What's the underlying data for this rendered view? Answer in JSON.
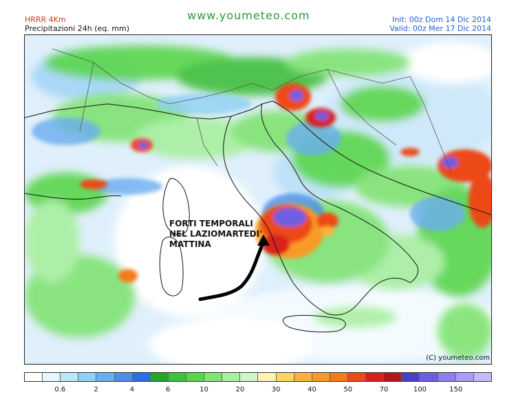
{
  "header": {
    "model": "HRRR 4Km",
    "product": "Precipitazioni 24h (eq. mm)",
    "site": "www.youmeteo.com",
    "init": "Init: 00z Dom 14 Dic 2014",
    "valid": "Valid: 00z Mer  17 Dic 2014"
  },
  "annotation": {
    "lines": [
      "FORTI TEMPORALI",
      "NEL LAZIOMARTEDI'",
      "MATTINA"
    ]
  },
  "copyright": "(C) youmeteo.com",
  "legend": {
    "colors": [
      "#ffffff",
      "#e6f7fd",
      "#b9e8f8",
      "#8fd0f3",
      "#6aaef0",
      "#4e8ee8",
      "#2c6fe3",
      "#23a62a",
      "#3fbf3a",
      "#5ad64c",
      "#80e372",
      "#a8ef9f",
      "#cdf6c9",
      "#fdf2b5",
      "#fdd65c",
      "#fbb33a",
      "#f99a27",
      "#f47a1a",
      "#ec4a18",
      "#d8201a",
      "#b5141a",
      "#4b3fc4",
      "#6c5fe0",
      "#8c7ff0",
      "#a99df7",
      "#c3b9fb"
    ],
    "ticks": [
      {
        "label": "0.6",
        "boundary": 2
      },
      {
        "label": "2",
        "boundary": 4
      },
      {
        "label": "4",
        "boundary": 6
      },
      {
        "label": "6",
        "boundary": 8
      },
      {
        "label": "10",
        "boundary": 10
      },
      {
        "label": "20",
        "boundary": 12
      },
      {
        "label": "30",
        "boundary": 14
      },
      {
        "label": "40",
        "boundary": 16
      },
      {
        "label": "50",
        "boundary": 18
      },
      {
        "label": "70",
        "boundary": 20
      },
      {
        "label": "100",
        "boundary": 22
      },
      {
        "label": "150",
        "boundary": 24
      }
    ]
  }
}
